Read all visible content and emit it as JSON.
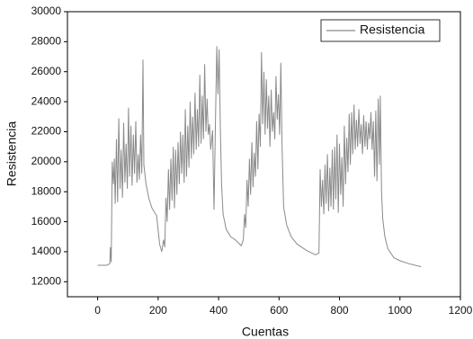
{
  "chart_data": {
    "type": "line",
    "x_label": "Cuentas",
    "y_label": "Resistencia",
    "xlim": [
      -100,
      1200
    ],
    "xticks": [
      0,
      200,
      400,
      600,
      800,
      1000,
      1200
    ],
    "ylim": [
      11000,
      30000
    ],
    "yticks": [
      12000,
      14000,
      16000,
      18000,
      20000,
      22000,
      24000,
      26000,
      28000,
      30000
    ],
    "legend": "upper right",
    "series": [
      {
        "name": "Resistencia",
        "color": "#8a8a8a",
        "x": [
          0,
          30,
          40,
          42,
          45,
          48,
          52,
          55,
          58,
          62,
          66,
          70,
          74,
          78,
          82,
          86,
          90,
          94,
          98,
          102,
          106,
          110,
          114,
          118,
          122,
          126,
          130,
          134,
          138,
          142,
          146,
          150,
          153,
          160,
          170,
          180,
          195,
          205,
          212,
          218,
          222,
          226,
          230,
          234,
          238,
          242,
          246,
          250,
          254,
          258,
          262,
          266,
          270,
          274,
          278,
          282,
          286,
          290,
          294,
          298,
          302,
          306,
          310,
          314,
          318,
          322,
          326,
          330,
          334,
          338,
          342,
          346,
          350,
          354,
          358,
          362,
          366,
          370,
          374,
          380,
          385,
          390,
          394,
          398,
          402,
          406,
          410,
          415,
          425,
          440,
          455,
          465,
          475,
          482,
          486,
          490,
          494,
          498,
          502,
          506,
          510,
          514,
          518,
          522,
          526,
          530,
          534,
          538,
          542,
          546,
          550,
          554,
          558,
          562,
          566,
          570,
          574,
          578,
          582,
          586,
          590,
          594,
          598,
          602,
          606,
          610,
          615,
          625,
          640,
          660,
          690,
          720,
          732,
          736,
          740,
          744,
          748,
          752,
          756,
          760,
          764,
          768,
          772,
          776,
          780,
          784,
          788,
          792,
          796,
          800,
          804,
          808,
          812,
          816,
          820,
          824,
          828,
          832,
          836,
          840,
          844,
          848,
          852,
          856,
          860,
          864,
          868,
          872,
          876,
          880,
          884,
          888,
          892,
          896,
          900,
          904,
          908,
          912,
          916,
          920,
          924,
          928,
          932,
          935,
          939,
          943,
          950,
          960,
          980,
          1000,
          1030,
          1070
        ],
        "values": [
          13100,
          13100,
          13200,
          14300,
          13300,
          20000,
          18500,
          20200,
          17200,
          21500,
          17300,
          22900,
          18200,
          20800,
          17600,
          22600,
          18600,
          21200,
          18200,
          23600,
          19000,
          22400,
          18400,
          21800,
          19200,
          22700,
          18600,
          20500,
          18800,
          21800,
          19200,
          26800,
          19800,
          18500,
          17500,
          16900,
          16400,
          14500,
          14000,
          14800,
          14300,
          17600,
          16000,
          19500,
          16800,
          20200,
          17400,
          21000,
          16900,
          20800,
          17800,
          21300,
          18500,
          22000,
          19200,
          21800,
          18600,
          23500,
          19000,
          22400,
          19600,
          24000,
          20200,
          23000,
          20500,
          24600,
          20800,
          23500,
          21000,
          25800,
          21200,
          24400,
          21500,
          26500,
          22000,
          24200,
          21800,
          22500,
          20800,
          22100,
          16800,
          23000,
          27700,
          24500,
          27500,
          22000,
          18500,
          16500,
          15500,
          15000,
          14800,
          14600,
          14400,
          14800,
          16500,
          15600,
          18800,
          17000,
          20200,
          17800,
          21300,
          18300,
          20600,
          19000,
          22700,
          19500,
          23200,
          21000,
          27300,
          22500,
          26000,
          21800,
          25500,
          22200,
          24400,
          21000,
          24800,
          22000,
          23300,
          21500,
          25700,
          22800,
          24500,
          21800,
          26600,
          21000,
          17000,
          15800,
          15000,
          14500,
          14100,
          13800,
          13900,
          19500,
          17000,
          18800,
          16500,
          19800,
          17200,
          20500,
          16700,
          19600,
          17000,
          20800,
          16800,
          21000,
          17500,
          21800,
          16600,
          21200,
          17800,
          20300,
          17000,
          22400,
          18500,
          21600,
          19300,
          23200,
          19800,
          23300,
          20500,
          23800,
          20800,
          22800,
          21000,
          23500,
          21200,
          22500,
          20500,
          23100,
          21000,
          22700,
          20800,
          22600,
          21500,
          23300,
          20800,
          22700,
          19000,
          23400,
          18700,
          24200,
          19800,
          24400,
          18000,
          16200,
          15000,
          14200,
          13600,
          13400,
          13200,
          13000
        ]
      }
    ]
  }
}
